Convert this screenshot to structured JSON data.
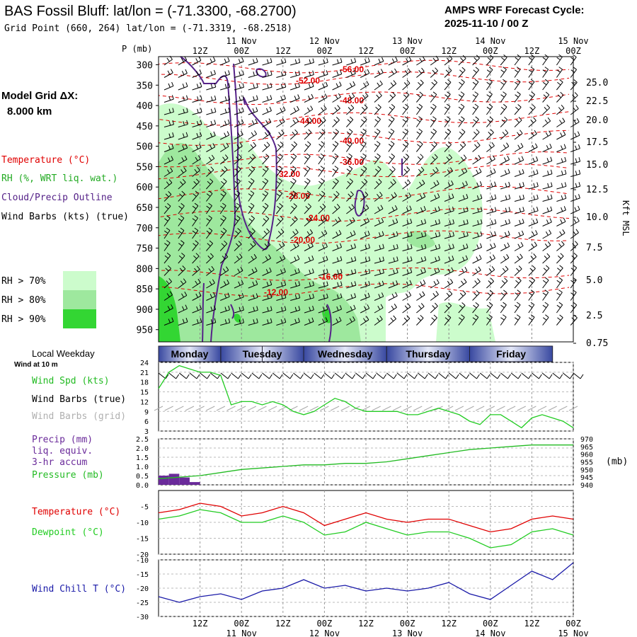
{
  "header": {
    "title": "BAS Fossil Bluff:  lat/lon = (-71.3300, -68.2700)",
    "subtitle": "Grid Point (660, 264) lat/lon = (-71.3319, -68.2518)",
    "cycle_line1": "AMPS WRF Forecast Cycle:",
    "cycle_line2": "2025-11-10 / 00  Z"
  },
  "time_axis": {
    "hours": [
      "12Z",
      "00Z",
      "12Z",
      "00Z",
      "12Z",
      "00Z",
      "12Z",
      "00Z",
      "12Z",
      "00Z"
    ],
    "dates": [
      "11 Nov",
      "12 Nov",
      "13 Nov",
      "14 Nov",
      "15 Nov"
    ]
  },
  "weekdays": {
    "title": "Local Weekday",
    "subtitle": "Wind at 10 m",
    "days": [
      "Monday",
      "Tuesday",
      "Wednesday",
      "Thursday",
      "Friday"
    ]
  },
  "left_labels": {
    "model_grid_line1": "Model Grid ΔX:",
    "model_grid_line2": "8.000 km",
    "temperature": "Temperature (°C)",
    "rh": "RH (%, WRT liq. wat.)",
    "cloud": "Cloud/Precip Outline",
    "wind_barbs": "Wind Barbs (kts) (true)",
    "rh70": "RH > 70%",
    "rh80": "RH > 80%",
    "rh90": "RH > 90%",
    "wind_spd": "Wind Spd (kts)",
    "wind_barbs_true": "Wind Barbs (true)",
    "wind_barbs_grid": "Wind Barbs (grid)",
    "precip1": "Precip (mm)",
    "precip2": "liq. equiv.",
    "precip3": "3-hr accum",
    "pressure": "Pressure (mb)",
    "pressure_unit": "(mb)",
    "temp2": "Temperature (°C)",
    "dewpoint": "Dewpoint (°C)",
    "windchill": "Wind Chill T (°C)",
    "p_axis": "P (mb)",
    "kft": "Kft MSL"
  },
  "colors": {
    "rh70": "#ccfccc",
    "rh80": "#9ee89e",
    "rh90": "#33d633",
    "temperature": "#e00000",
    "dewpoint": "#22cc22",
    "cloud": "#552288",
    "windchill": "#1a1aa8",
    "precip": "#6a2a9a",
    "pressure": "#22bb22"
  },
  "chart_data": [
    {
      "type": "heatmap",
      "ylabel": "P (mb)",
      "y_ticks": [
        300,
        350,
        400,
        450,
        500,
        550,
        600,
        650,
        700,
        750,
        800,
        850,
        900,
        950
      ],
      "y2_label": "Kft MSL",
      "y2_ticks": [
        "25.0",
        "22.5",
        "20.0",
        "17.5",
        "15.0",
        "12.5",
        "10.0",
        "7.5",
        "5.0",
        "2.5",
        "0.75"
      ],
      "isotherm_labels": [
        "-56.00",
        "-52.00",
        "-48.00",
        "-44.00",
        "-40.00",
        "-36.00",
        "-32.00",
        "-28.00",
        "-24.00",
        "-20.00",
        "-16.00",
        "-12.00"
      ]
    },
    {
      "type": "line",
      "name": "Wind Spd (kts)",
      "y_ticks": [
        3,
        6,
        9,
        12,
        15,
        18,
        21,
        24
      ],
      "ylim": [
        3,
        24
      ],
      "x_hours": [
        0,
        3,
        6,
        9,
        12,
        15,
        18,
        21,
        24,
        27,
        30,
        33,
        36,
        39,
        42,
        45,
        48,
        51,
        54,
        57,
        60,
        63,
        66,
        69,
        72,
        75,
        78,
        81,
        84,
        87,
        90,
        93,
        96,
        99,
        102,
        105,
        108,
        111,
        114,
        117,
        120
      ],
      "wind_speed": [
        16,
        21,
        23,
        22,
        21,
        21,
        20,
        11,
        12,
        12,
        11,
        12,
        11,
        9,
        8,
        9,
        11,
        13,
        12,
        10,
        9,
        9,
        9,
        9,
        8,
        8,
        9,
        10,
        9,
        8,
        6,
        5,
        8,
        8,
        6,
        4,
        7,
        8,
        7,
        6,
        4
      ]
    },
    {
      "type": "bar",
      "y_ticks": [
        "0.0",
        "0.5",
        "1.0",
        "1.5",
        "2.0",
        "2.5"
      ],
      "ylim": [
        0,
        2.5
      ],
      "y2_ticks": [
        "940",
        "945",
        "950",
        "955",
        "960",
        "965",
        "970"
      ],
      "y2lim": [
        940,
        970
      ],
      "precip_hours": [
        3,
        6,
        9,
        12
      ],
      "precip_values": [
        0.5,
        0.6,
        0.4,
        0.15
      ],
      "pressure_hours": [
        0,
        6,
        12,
        18,
        24,
        30,
        36,
        42,
        48,
        54,
        60,
        66,
        72,
        78,
        84,
        90,
        96,
        102,
        108,
        114,
        120
      ],
      "pressure": [
        944,
        945,
        946,
        948,
        950,
        951,
        952,
        953,
        953,
        954,
        954,
        955,
        957,
        959,
        961,
        963,
        964,
        965,
        966,
        966,
        966
      ]
    },
    {
      "type": "line",
      "y_ticks": [
        -5,
        -10,
        -15,
        -20
      ],
      "ylim": [
        -20,
        0
      ],
      "x_hours": [
        0,
        6,
        12,
        18,
        24,
        30,
        36,
        42,
        48,
        54,
        60,
        66,
        72,
        78,
        84,
        90,
        96,
        102,
        108,
        114,
        120
      ],
      "temperature": [
        -7,
        -6,
        -4,
        -5,
        -8,
        -7,
        -5,
        -7,
        -11,
        -9,
        -7,
        -9,
        -10,
        -9,
        -9,
        -11,
        -13,
        -12,
        -9,
        -8,
        -9
      ],
      "dewpoint": [
        -9,
        -8,
        -6,
        -7,
        -10,
        -10,
        -8,
        -10,
        -14,
        -13,
        -10,
        -12,
        -14,
        -13,
        -13,
        -15,
        -18,
        -17,
        -13,
        -12,
        -14
      ]
    },
    {
      "type": "line",
      "y_ticks": [
        -10,
        -15,
        -20,
        -25,
        -30
      ],
      "ylim": [
        -30,
        -10
      ],
      "x_hours": [
        0,
        6,
        12,
        18,
        24,
        30,
        36,
        42,
        48,
        54,
        60,
        66,
        72,
        78,
        84,
        90,
        96,
        102,
        108,
        114,
        120
      ],
      "windchill": [
        -23,
        -25,
        -23,
        -22,
        -24,
        -21,
        -20,
        -17,
        -20,
        -19,
        -21,
        -20,
        -21,
        -20,
        -18,
        -22,
        -24,
        -19,
        -14,
        -17,
        -11
      ]
    }
  ]
}
